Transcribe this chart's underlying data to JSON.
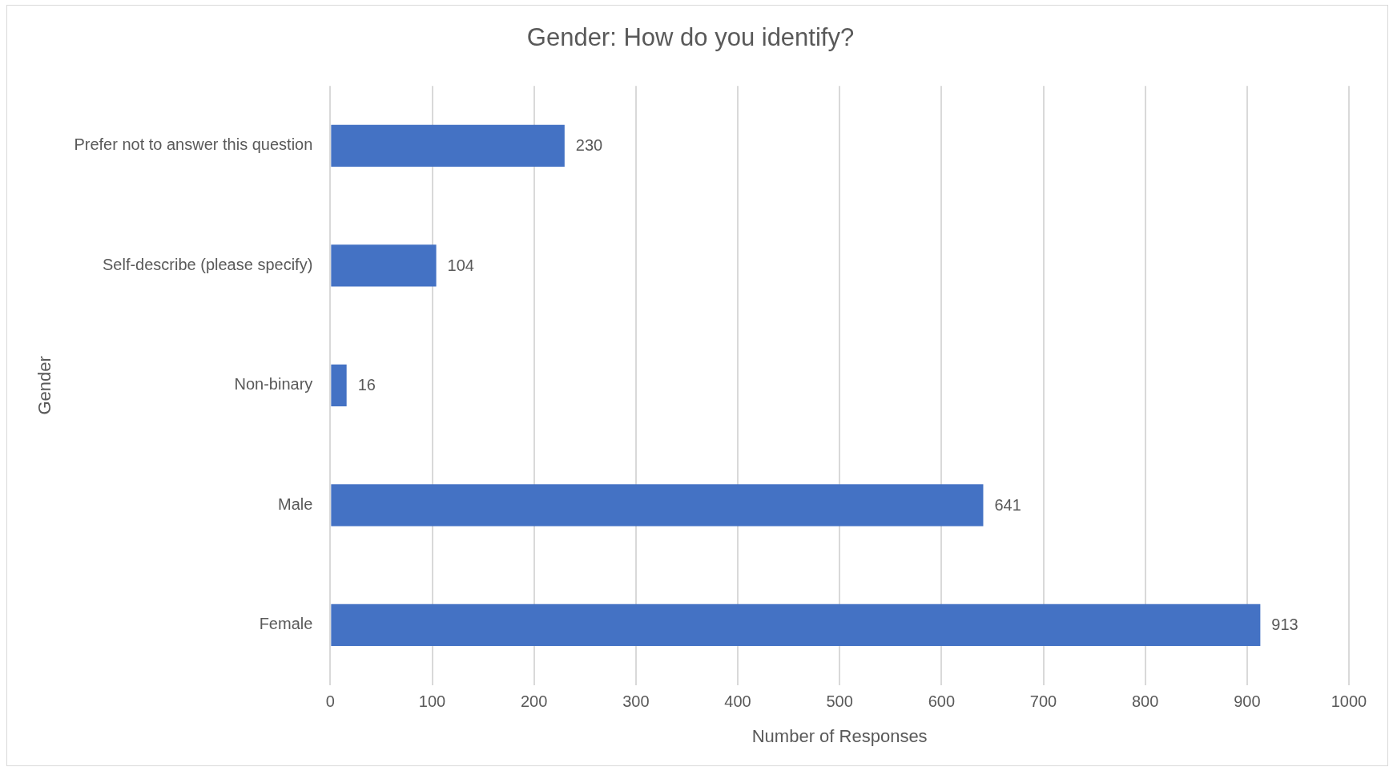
{
  "chart_data": {
    "type": "bar",
    "orientation": "horizontal",
    "title": "Gender: How do you identify?",
    "xlabel": "Number of Responses",
    "ylabel": "Gender",
    "categories": [
      "Prefer not to answer this question",
      "Self-describe (please specify)",
      "Non-binary",
      "Male",
      "Female"
    ],
    "values": [
      230,
      104,
      16,
      641,
      913
    ],
    "color": "#4472c4",
    "xlim": [
      0,
      1000
    ],
    "xticks": [
      0,
      100,
      200,
      300,
      400,
      500,
      600,
      700,
      800,
      900,
      1000
    ],
    "grid": "x",
    "data_labels": true,
    "legend": false
  }
}
